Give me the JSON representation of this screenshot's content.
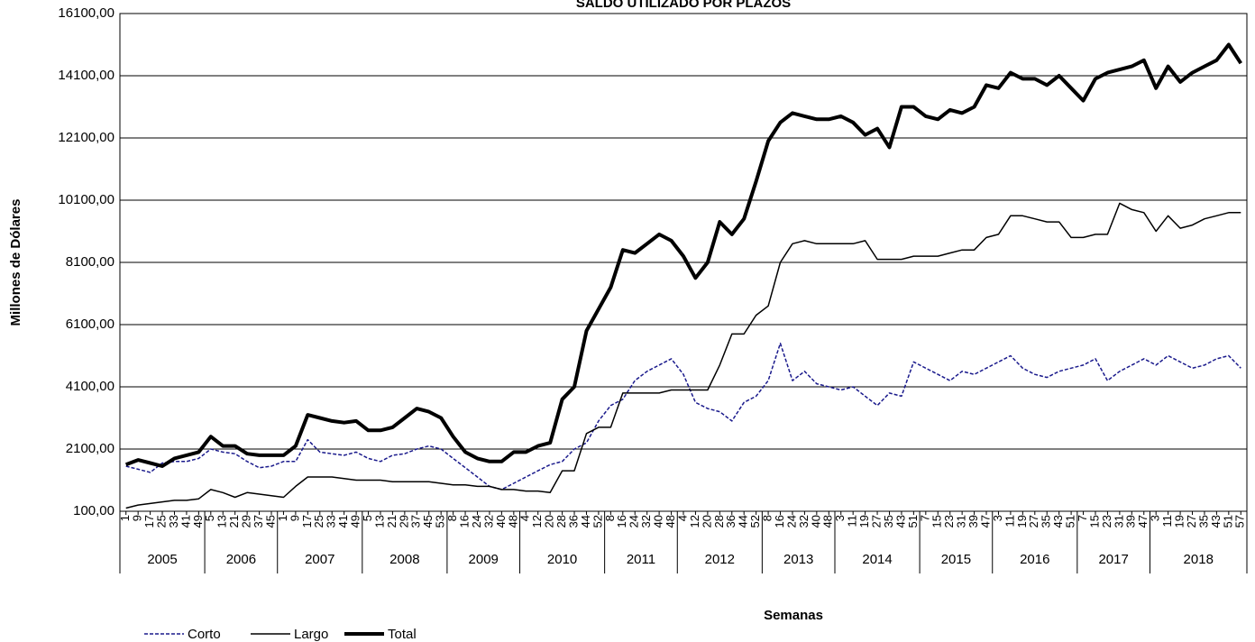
{
  "chart_data": {
    "type": "line",
    "title": "SALDO UTILIZADO POR PLAZOS",
    "y_label": "Millones de Dólares",
    "x_label": "Semanas",
    "year_groups": [
      {
        "year": "2005",
        "weeks": [
          "1",
          "9",
          "17",
          "25",
          "33",
          "41",
          "49"
        ]
      },
      {
        "year": "2006",
        "weeks": [
          "5",
          "13",
          "21",
          "29",
          "37",
          "45"
        ]
      },
      {
        "year": "2007",
        "weeks": [
          "1",
          "9",
          "17",
          "25",
          "33",
          "41",
          "49"
        ]
      },
      {
        "year": "2008",
        "weeks": [
          "5",
          "13",
          "21",
          "29",
          "37",
          "45",
          "53"
        ]
      },
      {
        "year": "2009",
        "weeks": [
          "8",
          "16",
          "24",
          "32",
          "40",
          "48"
        ]
      },
      {
        "year": "2010",
        "weeks": [
          "4",
          "12",
          "20",
          "28",
          "36",
          "44",
          "52"
        ]
      },
      {
        "year": "2011",
        "weeks": [
          "8",
          "16",
          "24",
          "32",
          "40",
          "48"
        ]
      },
      {
        "year": "2012",
        "weeks": [
          "4",
          "12",
          "20",
          "28",
          "36",
          "44",
          "52"
        ]
      },
      {
        "year": "2013",
        "weeks": [
          "8",
          "16",
          "24",
          "32",
          "40",
          "48"
        ]
      },
      {
        "year": "2014",
        "weeks": [
          "3",
          "11",
          "19",
          "27",
          "35",
          "43",
          "51"
        ]
      },
      {
        "year": "2015",
        "weeks": [
          "7",
          "15",
          "23",
          "31",
          "39",
          "47"
        ]
      },
      {
        "year": "2016",
        "weeks": [
          "3",
          "11",
          "19",
          "27",
          "35",
          "43",
          "51"
        ]
      },
      {
        "year": "2017",
        "weeks": [
          "7",
          "15",
          "23",
          "31",
          "39",
          "47"
        ]
      },
      {
        "year": "2018",
        "weeks": [
          "3",
          "11",
          "19",
          "27",
          "35",
          "43",
          "51",
          "57"
        ]
      }
    ],
    "series": [
      {
        "name": "Corto",
        "color": "#1a1a8c",
        "dash": true,
        "width": 1.5,
        "values": [
          1550,
          1450,
          1350,
          1650,
          1700,
          1700,
          1800,
          2100,
          2000,
          1950,
          1700,
          1500,
          1550,
          1700,
          1700,
          2400,
          2000,
          1950,
          1900,
          2000,
          1800,
          1700,
          1900,
          1950,
          2100,
          2200,
          2100,
          1800,
          1500,
          1200,
          900,
          800,
          1000,
          1200,
          1400,
          1600,
          1700,
          2100,
          2300,
          3000,
          3500,
          3700,
          4300,
          4600,
          4800,
          5000,
          4500,
          3600,
          3400,
          3300,
          3000,
          3600,
          3800,
          4300,
          5500,
          4300,
          4600,
          4200,
          4100,
          4000,
          4100,
          3800,
          3500,
          3900,
          3800,
          4900,
          4700,
          4500,
          4300,
          4600,
          4500,
          4700,
          4900,
          5100,
          4700,
          4500,
          4400,
          4600,
          4700,
          4800,
          5000,
          4300,
          4600,
          4800,
          5000,
          4800,
          5100,
          4900,
          4700,
          4800,
          5000,
          5100,
          4700
        ]
      },
      {
        "name": "Largo",
        "color": "#000000",
        "dash": false,
        "width": 1.5,
        "values": [
          200,
          300,
          350,
          400,
          450,
          450,
          500,
          800,
          700,
          550,
          700,
          650,
          600,
          550,
          900,
          1200,
          1200,
          1200,
          1150,
          1100,
          1100,
          1100,
          1050,
          1050,
          1050,
          1050,
          1000,
          950,
          950,
          900,
          900,
          800,
          800,
          750,
          750,
          700,
          1400,
          1400,
          2600,
          2800,
          2800,
          3900,
          3900,
          3900,
          3900,
          4000,
          4000,
          4000,
          4000,
          4800,
          5800,
          5800,
          6400,
          6700,
          8100,
          8700,
          8800,
          8700,
          8700,
          8700,
          8700,
          8800,
          8200,
          8200,
          8200,
          8300,
          8300,
          8300,
          8400,
          8500,
          8500,
          8900,
          9000,
          9600,
          9600,
          9500,
          9400,
          9400,
          8900,
          8900,
          9000,
          9000,
          10000,
          9800,
          9700,
          9100,
          9600,
          9200,
          9300,
          9500,
          9600,
          9700,
          9700
        ]
      },
      {
        "name": "Total",
        "color": "#000000",
        "dash": false,
        "width": 4,
        "values": [
          1600,
          1750,
          1650,
          1550,
          1800,
          1900,
          2000,
          2500,
          2200,
          2200,
          1950,
          1900,
          1900,
          1900,
          2200,
          3200,
          3100,
          3000,
          2950,
          3000,
          2700,
          2700,
          2800,
          3100,
          3400,
          3300,
          3100,
          2500,
          2000,
          1800,
          1700,
          1700,
          2000,
          2000,
          2200,
          2300,
          3700,
          4100,
          5900,
          6600,
          7300,
          8500,
          8400,
          8700,
          9000,
          8800,
          8300,
          7600,
          8100,
          9400,
          9000,
          9500,
          10700,
          12000,
          12600,
          12900,
          12800,
          12700,
          12700,
          12800,
          12600,
          12200,
          12400,
          11800,
          13100,
          13100,
          12800,
          12700,
          13000,
          12900,
          13100,
          13800,
          13700,
          14200,
          14000,
          14000,
          13800,
          14100,
          13700,
          13300,
          14000,
          14200,
          14300,
          14400,
          14600,
          13700,
          14400,
          13900,
          14200,
          14400,
          14600,
          15100,
          14500
        ]
      }
    ],
    "ylim": [
      100,
      16100
    ],
    "yticks": [
      {
        "value": 100,
        "label": "100,00"
      },
      {
        "value": 2100,
        "label": "2100,00"
      },
      {
        "value": 4100,
        "label": "4100,00"
      },
      {
        "value": 6100,
        "label": "6100,00"
      },
      {
        "value": 8100,
        "label": "8100,00"
      },
      {
        "value": 10100,
        "label": "10100,00"
      },
      {
        "value": 12100,
        "label": "12100,00"
      },
      {
        "value": 14100,
        "label": "14100,00"
      },
      {
        "value": 16100,
        "label": "16100,00"
      }
    ],
    "grid": true,
    "legend": "bottom-left"
  }
}
